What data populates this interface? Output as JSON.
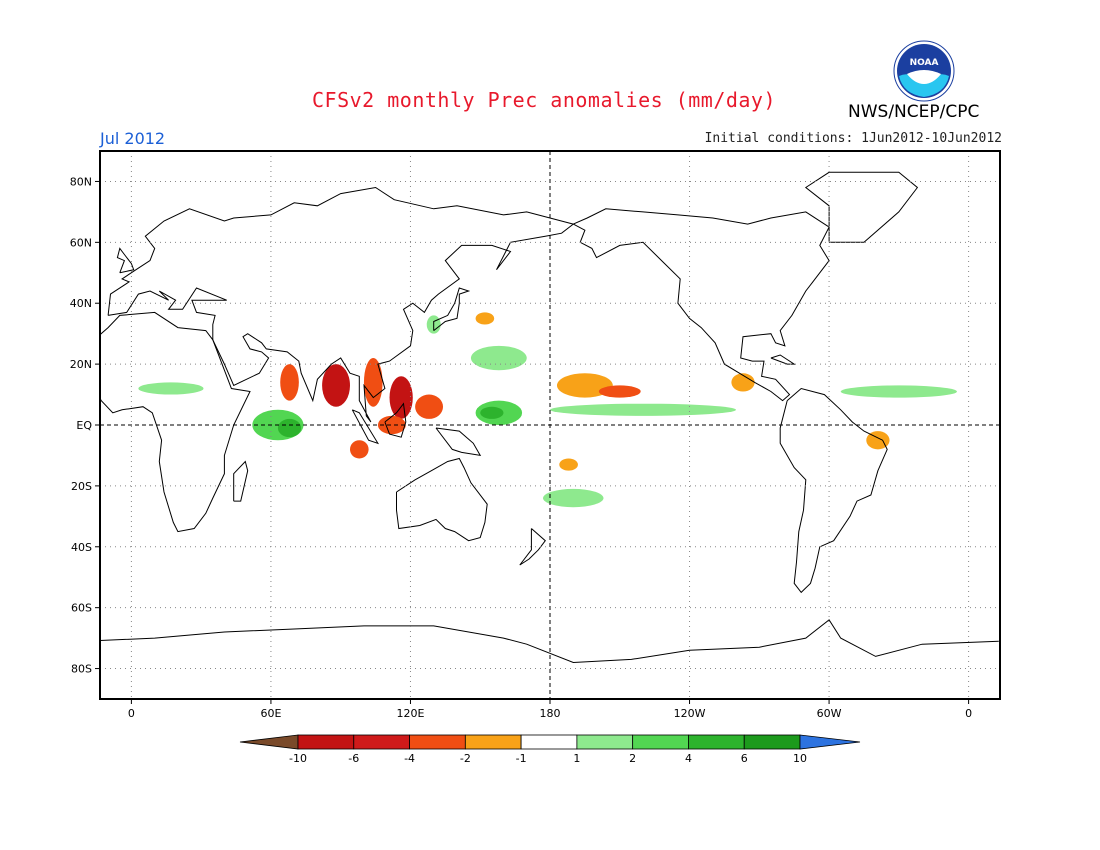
{
  "header": {
    "title": "CFSv2 monthly Prec anomalies (mm/day)",
    "month": "Jul 2012",
    "initial_conditions": "Initial conditions: 1Jun2012-10Jun2012",
    "agency": "NWS/NCEP/CPC",
    "logo_text": "NOAA"
  },
  "map": {
    "projection": "cylindrical-equidistant",
    "lat_range": [
      -90,
      90
    ],
    "lon_labels": [
      "0",
      "60E",
      "120E",
      "180",
      "120W",
      "60W",
      "0"
    ],
    "lat_labels": [
      "80N",
      "60N",
      "40N",
      "20N",
      "EQ",
      "20S",
      "40S",
      "60S",
      "80S"
    ]
  },
  "colorbar": {
    "labels": [
      "-10",
      "-6",
      "-4",
      "-2",
      "-1",
      "1",
      "2",
      "4",
      "6",
      "10"
    ],
    "colors": [
      "#7a4a2a",
      "#c31313",
      "#cf1a1a",
      "#f04e13",
      "#f8a218",
      "#ffffff",
      "#8ee98e",
      "#52d652",
      "#2db32d",
      "#1c9a1c",
      "#2d73e0"
    ]
  },
  "anomalies": [
    {
      "name": "arabian-sea-dry",
      "category": "-4",
      "lon": 68,
      "lat": 14,
      "rx": 4,
      "ry": 6
    },
    {
      "name": "bay-of-bengal-dry",
      "category": "-6",
      "lon": 88,
      "lat": 13,
      "rx": 6,
      "ry": 7
    },
    {
      "name": "indochina-dry",
      "category": "-4",
      "lon": 104,
      "lat": 14,
      "rx": 4,
      "ry": 8
    },
    {
      "name": "south-china-sea-dry",
      "category": "-6",
      "lon": 116,
      "lat": 9,
      "rx": 5,
      "ry": 7
    },
    {
      "name": "philippines-dry",
      "category": "-4",
      "lon": 128,
      "lat": 6,
      "rx": 6,
      "ry": 4
    },
    {
      "name": "indonesia-dry",
      "category": "-4",
      "lon": 112,
      "lat": 0,
      "rx": 6,
      "ry": 3
    },
    {
      "name": "sumatra-dry",
      "category": "-4",
      "lon": 98,
      "lat": -8,
      "rx": 4,
      "ry": 3
    },
    {
      "name": "central-pacific-dry",
      "category": "-2",
      "lon": 195,
      "lat": 13,
      "rx": 12,
      "ry": 4
    },
    {
      "name": "central-pacific-dry-core",
      "category": "-4",
      "lon": 210,
      "lat": 11,
      "rx": 9,
      "ry": 2
    },
    {
      "name": "east-pacific-dry",
      "category": "-2",
      "lon": 263,
      "lat": 14,
      "rx": 5,
      "ry": 3
    },
    {
      "name": "brazil-dry",
      "category": "-2",
      "lon": 321,
      "lat": -5,
      "rx": 5,
      "ry": 3
    },
    {
      "name": "japan-dry",
      "category": "-2",
      "lon": 152,
      "lat": 35,
      "rx": 4,
      "ry": 2
    },
    {
      "name": "south-pacific-dry",
      "category": "-2",
      "lon": 188,
      "lat": -13,
      "rx": 4,
      "ry": 2
    },
    {
      "name": "indian-ocean-wet",
      "category": "4",
      "lon": 63,
      "lat": 0,
      "rx": 11,
      "ry": 5
    },
    {
      "name": "indian-ocean-wet-core",
      "category": "6",
      "lon": 68,
      "lat": -1,
      "rx": 5,
      "ry": 3
    },
    {
      "name": "west-pacific-wet",
      "category": "4",
      "lon": 158,
      "lat": 4,
      "rx": 10,
      "ry": 4
    },
    {
      "name": "west-pacific-wet-core",
      "category": "6",
      "lon": 155,
      "lat": 4,
      "rx": 5,
      "ry": 2
    },
    {
      "name": "north-pacific-wet",
      "category": "2",
      "lon": 158,
      "lat": 22,
      "rx": 12,
      "ry": 4
    },
    {
      "name": "pacific-itcz-wet",
      "category": "2",
      "lon": 220,
      "lat": 5,
      "rx": 40,
      "ry": 2
    },
    {
      "name": "spcz-wet",
      "category": "2",
      "lon": 190,
      "lat": -24,
      "rx": 13,
      "ry": 3
    },
    {
      "name": "atlantic-itcz-wet-east",
      "category": "2",
      "lon": 330,
      "lat": 11,
      "rx": 25,
      "ry": 2
    },
    {
      "name": "africa-wet",
      "category": "2",
      "lon": 17,
      "lat": 12,
      "rx": 14,
      "ry": 2
    },
    {
      "name": "china-wet",
      "category": "2",
      "lon": 130,
      "lat": 33,
      "rx": 3,
      "ry": 3
    }
  ]
}
